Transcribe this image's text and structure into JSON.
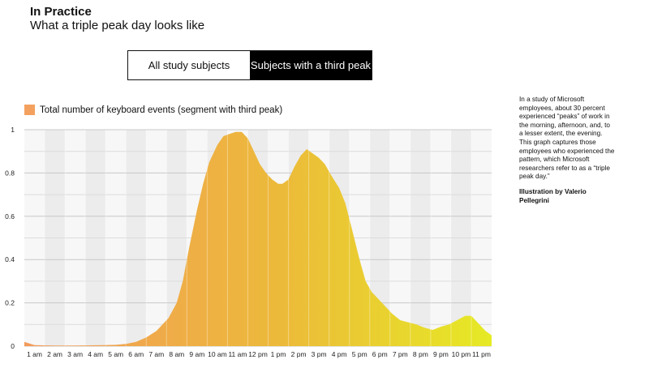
{
  "header": {
    "title": "In Practice",
    "subtitle": "What a triple peak day looks like"
  },
  "toggle": {
    "options": [
      "All study subjects",
      "Subjects with a third peak"
    ],
    "active_index": 1
  },
  "legend": {
    "label": "Total number of keyboard events (segment with third peak)",
    "swatch_color": "#f4a15f"
  },
  "sidebar": {
    "text": "In a study of Microsoft employees, about 30 percent experienced “peaks” of work in the morning, afternoon, and, to a lesser extent, the evening. This graph captures those employees who experienced the pattern, which Microsoft researchers refer to as a “triple peak day.”",
    "credit": "Illustration by Valerio Pellegrini"
  },
  "colors": {
    "start": "#f39a5a",
    "mid": "#ecba3a",
    "end": "#e6ea25"
  },
  "chart_data": {
    "type": "area",
    "title": "",
    "xlabel": "",
    "ylabel": "",
    "ylim": [
      0,
      1
    ],
    "yticks": [
      "0",
      "0.2",
      "0.4",
      "0.6",
      "0.8",
      "1"
    ],
    "xticks": [
      "1 am",
      "2 am",
      "3 am",
      "4 am",
      "5 am",
      "6 am",
      "7 am",
      "8 am",
      "9 am",
      "10 am",
      "11 am",
      "12 pm",
      "1 pm",
      "2 pm",
      "3 pm",
      "4 pm",
      "5 pm",
      "6 pm",
      "7 pm",
      "8 pm",
      "9 pm",
      "10 pm",
      "11 pm"
    ],
    "x": [
      0.5,
      1,
      2,
      3,
      4,
      5,
      5.5,
      6,
      6.5,
      7,
      7.3,
      7.6,
      8,
      8.3,
      8.6,
      9,
      9.3,
      9.6,
      10,
      10.3,
      10.6,
      10.9,
      11.2,
      11.5,
      11.8,
      12.1,
      12.4,
      12.7,
      13,
      13.2,
      13.5,
      13.8,
      14.1,
      14.4,
      14.7,
      15,
      15.3,
      15.6,
      16,
      16.3,
      16.6,
      17,
      17.3,
      17.6,
      18,
      18.3,
      18.6,
      19,
      19.4,
      19.8,
      20.2,
      20.6,
      21,
      21.4,
      21.8,
      22.2,
      22.5,
      22.8,
      23.2,
      23.5
    ],
    "series": [
      {
        "name": "",
        "values": [
          0.02,
          0.005,
          0.003,
          0.003,
          0.004,
          0.006,
          0.01,
          0.02,
          0.04,
          0.07,
          0.1,
          0.13,
          0.2,
          0.3,
          0.45,
          0.63,
          0.75,
          0.85,
          0.93,
          0.97,
          0.98,
          0.99,
          0.99,
          0.96,
          0.9,
          0.84,
          0.8,
          0.77,
          0.75,
          0.75,
          0.77,
          0.83,
          0.88,
          0.91,
          0.89,
          0.87,
          0.84,
          0.79,
          0.73,
          0.66,
          0.55,
          0.4,
          0.3,
          0.25,
          0.21,
          0.18,
          0.15,
          0.12,
          0.11,
          0.1,
          0.085,
          0.075,
          0.09,
          0.1,
          0.12,
          0.14,
          0.14,
          0.11,
          0.07,
          0.05
        ]
      }
    ]
  }
}
